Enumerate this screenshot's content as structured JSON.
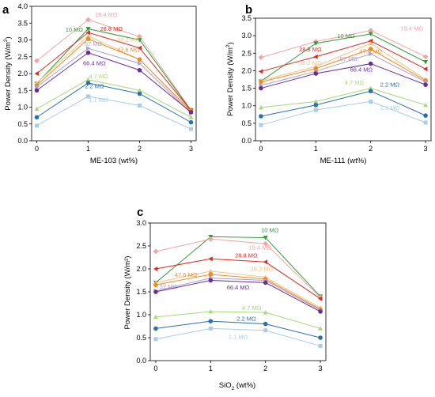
{
  "chart_data": [
    {
      "panel": "a",
      "type": "line",
      "xlabel": "ME-103 (wt%)",
      "ylabel_main": "Power Density (W/m",
      "ylabel_sup": "2",
      "ylabel_end": ")",
      "x": [
        0,
        1,
        2,
        3
      ],
      "xlim": [
        -0.1,
        3.1
      ],
      "ylim": [
        0,
        4.0
      ],
      "xticks": [
        "0",
        "1",
        "2",
        "3"
      ],
      "yticks": [
        "0.0",
        "0.5",
        "1.0",
        "1.5",
        "2.0",
        "2.5",
        "3.0",
        "3.5",
        "4.0"
      ],
      "series": [
        {
          "name": "19.4 MΩ",
          "values": [
            2.38,
            3.6,
            3.1,
            0.92
          ],
          "color": "#f4a3a3"
        },
        {
          "name": "10 MΩ",
          "values": [
            1.7,
            3.33,
            3.0,
            0.9
          ],
          "color": "#2f9a36"
        },
        {
          "name": "28.8 MΩ",
          "values": [
            2.0,
            3.22,
            2.76,
            0.9
          ],
          "color": "#dc2a1e"
        },
        {
          "name": "38.2 MΩ",
          "values": [
            1.72,
            3.12,
            2.42,
            0.85
          ],
          "color": "#f5c27a"
        },
        {
          "name": "47.6 MΩ",
          "values": [
            1.65,
            3.03,
            2.42,
            0.88
          ],
          "color": "#f28a22"
        },
        {
          "name": "57 MΩ",
          "values": [
            1.6,
            2.75,
            2.3,
            0.82
          ],
          "color": "#a99fd3"
        },
        {
          "name": "66.4 MΩ",
          "values": [
            1.5,
            2.62,
            2.1,
            0.85
          ],
          "color": "#6a2c96"
        },
        {
          "name": "4.7 MΩ",
          "values": [
            0.95,
            1.82,
            1.5,
            0.7
          ],
          "color": "#a8d878"
        },
        {
          "name": "2.2 MΩ",
          "values": [
            0.7,
            1.72,
            1.4,
            0.55
          ],
          "color": "#2a6fb0"
        },
        {
          "name": "1.1 MΩ",
          "values": [
            0.45,
            1.32,
            1.05,
            0.35
          ],
          "color": "#a8cde6"
        }
      ]
    },
    {
      "panel": "b",
      "type": "line",
      "xlabel": "ME-111 (wt%)",
      "ylabel_main": "Power Density (W/m",
      "ylabel_sup": "2",
      "ylabel_end": ")",
      "x": [
        0,
        1,
        2,
        3
      ],
      "xlim": [
        -0.1,
        3.1
      ],
      "ylim": [
        0,
        3.5
      ],
      "xticks": [
        "0",
        "1",
        "2",
        "3"
      ],
      "yticks": [
        "0.0",
        "0.5",
        "1.0",
        "1.5",
        "2.0",
        "2.5",
        "3.0",
        "3.5"
      ],
      "series": [
        {
          "name": "19.4 MΩ",
          "values": [
            2.38,
            2.83,
            3.15,
            2.4
          ],
          "color": "#f4a3a3"
        },
        {
          "name": "10 MΩ",
          "values": [
            1.7,
            2.78,
            3.05,
            2.25
          ],
          "color": "#2f9a36"
        },
        {
          "name": "28.8 MΩ",
          "values": [
            1.98,
            2.4,
            2.85,
            2.05
          ],
          "color": "#dc2a1e"
        },
        {
          "name": "38.2 MΩ",
          "values": [
            1.72,
            2.12,
            2.78,
            1.75
          ],
          "color": "#f5c27a"
        },
        {
          "name": "47.6 MΩ",
          "values": [
            1.68,
            2.06,
            2.62,
            1.72
          ],
          "color": "#f28a22"
        },
        {
          "name": "57 MΩ",
          "values": [
            1.58,
            1.98,
            2.48,
            1.68
          ],
          "color": "#a99fd3"
        },
        {
          "name": "66.4 MΩ",
          "values": [
            1.5,
            1.92,
            2.2,
            1.6
          ],
          "color": "#6a2c96"
        },
        {
          "name": "4.7 MΩ",
          "values": [
            0.95,
            1.12,
            1.5,
            1.02
          ],
          "color": "#a8d878"
        },
        {
          "name": "2.2 MΩ",
          "values": [
            0.7,
            1.02,
            1.42,
            0.72
          ],
          "color": "#2a6fb0"
        },
        {
          "name": "1.1 MΩ",
          "values": [
            0.45,
            0.88,
            1.12,
            0.52
          ],
          "color": "#a8cde6"
        }
      ]
    },
    {
      "panel": "c",
      "type": "line",
      "xlabel_main": "SiO",
      "xlabel_sub": "2",
      "xlabel_end": " (wt%)",
      "ylabel": "Power Density (W/m²)",
      "x": [
        0,
        1,
        2,
        3
      ],
      "xlim": [
        -0.1,
        3.1
      ],
      "ylim": [
        0,
        3.0
      ],
      "xticks": [
        "0",
        "1",
        "2",
        "3"
      ],
      "yticks": [
        "0.0",
        "0.5",
        "1.0",
        "1.5",
        "2.0",
        "2.5",
        "3.0"
      ],
      "series": [
        {
          "name": "10 MΩ",
          "values": [
            1.7,
            2.7,
            2.68,
            1.4
          ],
          "color": "#2f9a36"
        },
        {
          "name": "19.4 MΩ",
          "values": [
            2.38,
            2.65,
            2.55,
            1.38
          ],
          "color": "#f4a3a3"
        },
        {
          "name": "28.8 MΩ",
          "values": [
            2.0,
            2.22,
            2.15,
            1.35
          ],
          "color": "#dc2a1e"
        },
        {
          "name": "38.2 MΩ",
          "values": [
            1.7,
            1.95,
            1.82,
            1.15
          ],
          "color": "#f5c27a"
        },
        {
          "name": "47.6 MΩ",
          "values": [
            1.65,
            1.88,
            1.78,
            1.12
          ],
          "color": "#f28a22"
        },
        {
          "name": "57 MΩ",
          "values": [
            1.52,
            1.8,
            1.75,
            1.1
          ],
          "color": "#a99fd3"
        },
        {
          "name": "66.4 MΩ",
          "values": [
            1.5,
            1.75,
            1.7,
            1.07
          ],
          "color": "#6a2c96"
        },
        {
          "name": "4.7 MΩ",
          "values": [
            0.95,
            1.07,
            1.05,
            0.7
          ],
          "color": "#a8d878"
        },
        {
          "name": "2.2 MΩ",
          "values": [
            0.7,
            0.86,
            0.8,
            0.5
          ],
          "color": "#2a6fb0"
        },
        {
          "name": "1.1 MΩ",
          "values": [
            0.47,
            0.7,
            0.66,
            0.32
          ],
          "color": "#a8cde6"
        }
      ]
    }
  ]
}
